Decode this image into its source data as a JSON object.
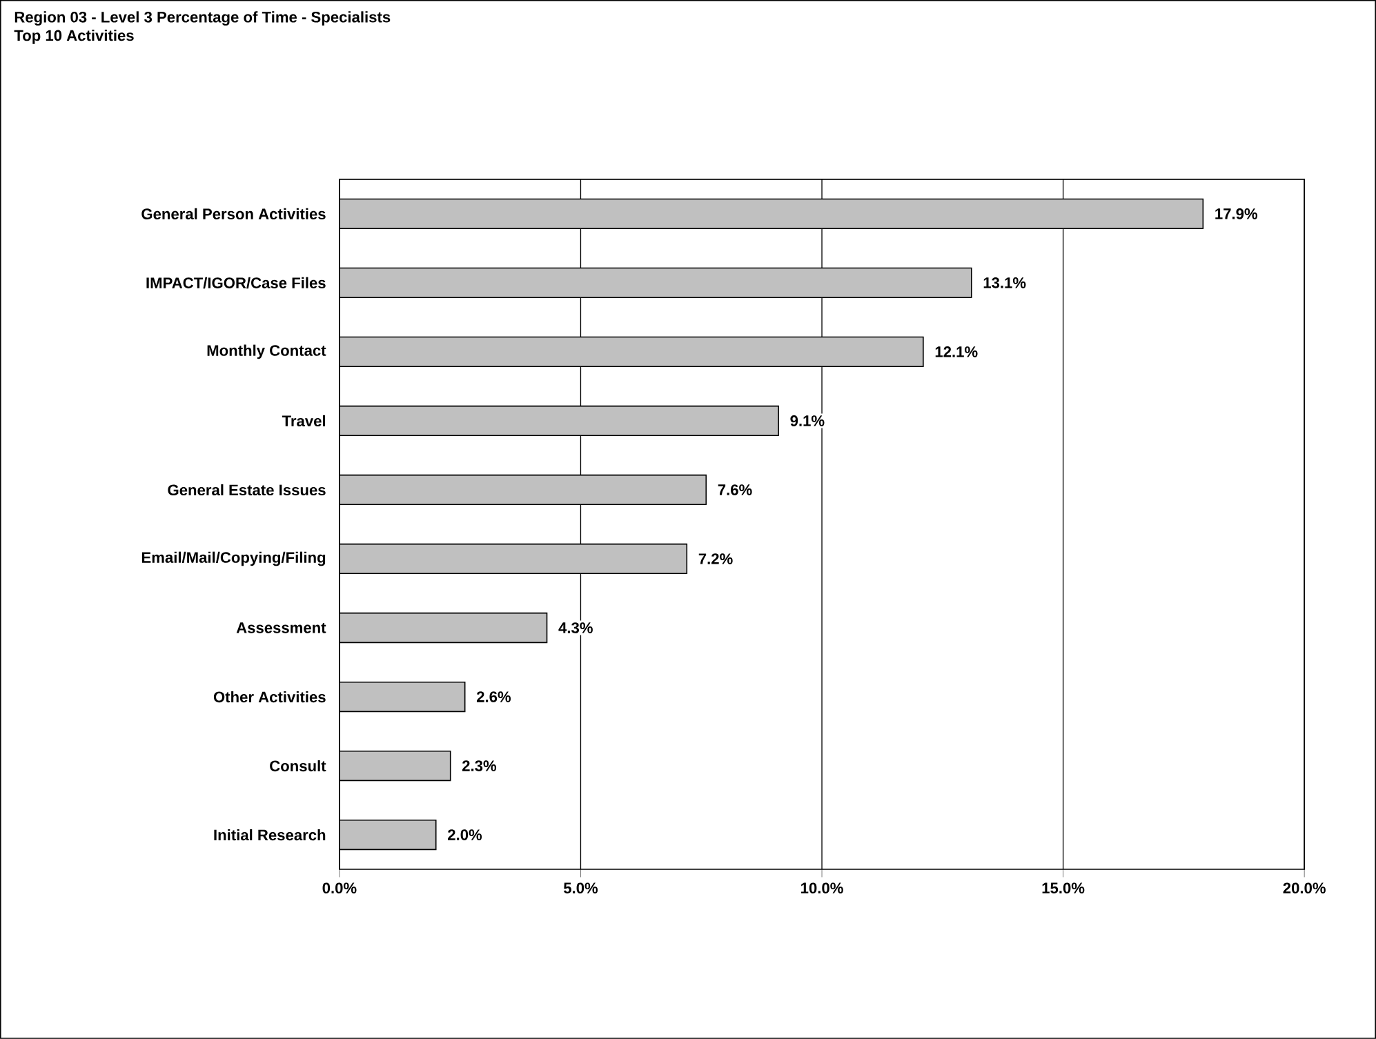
{
  "chart_data": {
    "type": "bar",
    "orientation": "horizontal",
    "title": "Region 03 - Level 3 Percentage of Time - Specialists",
    "subtitle": "Top 10 Activities",
    "categories": [
      "General Person Activities",
      "IMPACT/IGOR/Case Files",
      "Monthly Contact",
      "Travel",
      "General Estate Issues",
      "Email/Mail/Copying/Filing",
      "Assessment",
      "Other Activities",
      "Consult",
      "Initial Research"
    ],
    "values": [
      17.9,
      13.1,
      12.1,
      9.1,
      7.6,
      7.2,
      4.3,
      2.6,
      2.3,
      2.0
    ],
    "value_labels": [
      "17.9%",
      "13.1%",
      "12.1%",
      "9.1%",
      "7.6%",
      "7.2%",
      "4.3%",
      "2.6%",
      "2.3%",
      "2.0%"
    ],
    "color": "#c0c0c0",
    "xlim": [
      0,
      20
    ],
    "xticks": [
      {
        "value": 0,
        "label": "0.0%"
      },
      {
        "value": 5,
        "label": "5.0%"
      },
      {
        "value": 10,
        "label": "10.0%"
      },
      {
        "value": 15,
        "label": "15.0%"
      },
      {
        "value": 20,
        "label": "20.0%"
      }
    ],
    "grid": "x"
  }
}
